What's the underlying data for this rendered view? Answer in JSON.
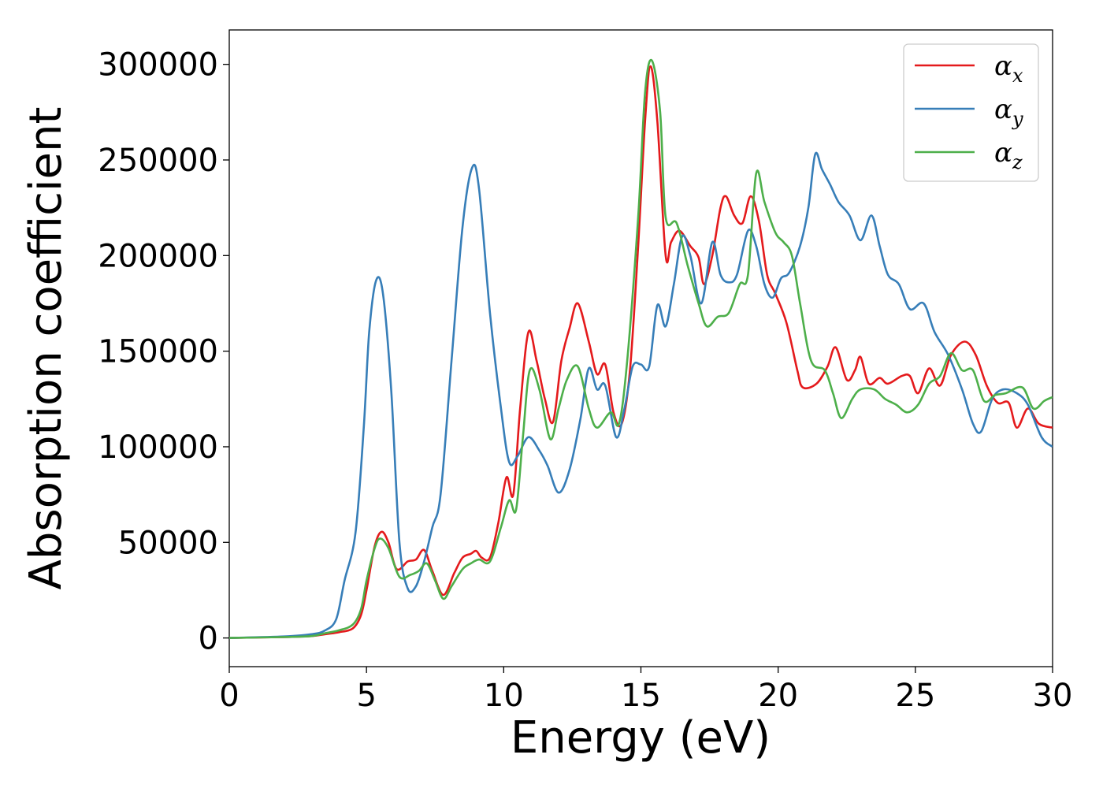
{
  "chart_data": {
    "type": "line",
    "title": "",
    "xlabel": "Energy (eV)",
    "ylabel": "Absorption coefficient",
    "xlim": [
      0,
      30
    ],
    "ylim": [
      -15000,
      318000
    ],
    "xticks": [
      0,
      5,
      10,
      15,
      20,
      25,
      30
    ],
    "yticks": [
      0,
      50000,
      100000,
      150000,
      200000,
      250000,
      300000
    ],
    "xtick_labels": [
      "0",
      "5",
      "10",
      "15",
      "20",
      "25",
      "30"
    ],
    "ytick_labels": [
      "0",
      "50000",
      "100000",
      "150000",
      "200000",
      "250000",
      "300000"
    ],
    "grid": false,
    "legend_position": "top-right",
    "series": [
      {
        "name": "αx",
        "symbol": "α",
        "subscript": "x",
        "color": "#e41a1c",
        "points": [
          [
            0,
            0
          ],
          [
            2,
            500
          ],
          [
            3,
            1000
          ],
          [
            3.5,
            2000
          ],
          [
            4,
            3000
          ],
          [
            4.5,
            5000
          ],
          [
            4.8,
            12000
          ],
          [
            5,
            25000
          ],
          [
            5.3,
            48000
          ],
          [
            5.55,
            55500
          ],
          [
            5.8,
            50000
          ],
          [
            6.1,
            36000
          ],
          [
            6.5,
            40000
          ],
          [
            6.8,
            41000
          ],
          [
            7.1,
            46000
          ],
          [
            7.4,
            35000
          ],
          [
            7.8,
            22500
          ],
          [
            8.2,
            34000
          ],
          [
            8.5,
            42000
          ],
          [
            8.8,
            44000
          ],
          [
            9,
            45500
          ],
          [
            9.2,
            42000
          ],
          [
            9.5,
            42000
          ],
          [
            9.8,
            60000
          ],
          [
            10.1,
            84000
          ],
          [
            10.35,
            75000
          ],
          [
            10.6,
            120000
          ],
          [
            10.9,
            160000
          ],
          [
            11.2,
            145000
          ],
          [
            11.5,
            125000
          ],
          [
            11.8,
            113000
          ],
          [
            12.1,
            145000
          ],
          [
            12.4,
            162000
          ],
          [
            12.7,
            175000
          ],
          [
            13.1,
            155000
          ],
          [
            13.4,
            138000
          ],
          [
            13.7,
            143000
          ],
          [
            14,
            118000
          ],
          [
            14.3,
            112000
          ],
          [
            14.6,
            140000
          ],
          [
            14.9,
            205000
          ],
          [
            15.15,
            270000
          ],
          [
            15.35,
            299000
          ],
          [
            15.6,
            270000
          ],
          [
            15.9,
            200000
          ],
          [
            16.1,
            207000
          ],
          [
            16.4,
            213000
          ],
          [
            16.8,
            205000
          ],
          [
            17.1,
            199000
          ],
          [
            17.3,
            185000
          ],
          [
            17.6,
            200000
          ],
          [
            17.9,
            225000
          ],
          [
            18.1,
            231000
          ],
          [
            18.4,
            221000
          ],
          [
            18.7,
            217000
          ],
          [
            19,
            231000
          ],
          [
            19.3,
            218000
          ],
          [
            19.6,
            190000
          ],
          [
            19.9,
            180000
          ],
          [
            20.3,
            165000
          ],
          [
            20.7,
            140000
          ],
          [
            20.9,
            131000
          ],
          [
            21.4,
            133000
          ],
          [
            21.8,
            142000
          ],
          [
            22.1,
            152000
          ],
          [
            22.5,
            135000
          ],
          [
            22.8,
            140000
          ],
          [
            23,
            147000
          ],
          [
            23.3,
            133000
          ],
          [
            23.7,
            136000
          ],
          [
            24,
            133000
          ],
          [
            24.5,
            137000
          ],
          [
            24.8,
            137000
          ],
          [
            25.1,
            128000
          ],
          [
            25.5,
            141000
          ],
          [
            25.9,
            132000
          ],
          [
            26.3,
            148000
          ],
          [
            26.8,
            155000
          ],
          [
            27.2,
            148000
          ],
          [
            27.6,
            132000
          ],
          [
            28,
            123000
          ],
          [
            28.4,
            123000
          ],
          [
            28.7,
            110000
          ],
          [
            29.1,
            120000
          ],
          [
            29.5,
            112000
          ],
          [
            30,
            110000
          ]
        ]
      },
      {
        "name": "αy",
        "symbol": "α",
        "subscript": "y",
        "color": "#377eb8",
        "points": [
          [
            0,
            0
          ],
          [
            2,
            800
          ],
          [
            3,
            2000
          ],
          [
            3.5,
            4000
          ],
          [
            3.9,
            10000
          ],
          [
            4.2,
            30000
          ],
          [
            4.6,
            55000
          ],
          [
            4.9,
            110000
          ],
          [
            5.1,
            160000
          ],
          [
            5.35,
            187000
          ],
          [
            5.6,
            180000
          ],
          [
            5.9,
            130000
          ],
          [
            6.2,
            50000
          ],
          [
            6.5,
            26000
          ],
          [
            6.8,
            27000
          ],
          [
            7.1,
            40000
          ],
          [
            7.4,
            58000
          ],
          [
            7.7,
            75000
          ],
          [
            8.1,
            145000
          ],
          [
            8.5,
            215000
          ],
          [
            8.85,
            246000
          ],
          [
            9.1,
            235000
          ],
          [
            9.5,
            170000
          ],
          [
            9.9,
            120000
          ],
          [
            10.2,
            92000
          ],
          [
            10.5,
            95000
          ],
          [
            10.9,
            105000
          ],
          [
            11.3,
            98000
          ],
          [
            11.6,
            90000
          ],
          [
            12,
            76000
          ],
          [
            12.4,
            88000
          ],
          [
            12.8,
            115000
          ],
          [
            13.1,
            141000
          ],
          [
            13.4,
            130000
          ],
          [
            13.7,
            132000
          ],
          [
            14.1,
            105000
          ],
          [
            14.4,
            120000
          ],
          [
            14.7,
            142000
          ],
          [
            15,
            143000
          ],
          [
            15.3,
            142000
          ],
          [
            15.6,
            174000
          ],
          [
            15.9,
            163000
          ],
          [
            16.2,
            185000
          ],
          [
            16.5,
            210000
          ],
          [
            16.8,
            200000
          ],
          [
            17.2,
            175000
          ],
          [
            17.6,
            207000
          ],
          [
            17.9,
            190000
          ],
          [
            18.2,
            186000
          ],
          [
            18.5,
            190000
          ],
          [
            18.9,
            213000
          ],
          [
            19.2,
            205000
          ],
          [
            19.5,
            185000
          ],
          [
            19.8,
            178000
          ],
          [
            20.1,
            188000
          ],
          [
            20.4,
            191000
          ],
          [
            20.8,
            205000
          ],
          [
            21.1,
            225000
          ],
          [
            21.35,
            253000
          ],
          [
            21.6,
            245000
          ],
          [
            21.9,
            237000
          ],
          [
            22.2,
            228000
          ],
          [
            22.6,
            221000
          ],
          [
            23,
            208000
          ],
          [
            23.4,
            221000
          ],
          [
            23.7,
            205000
          ],
          [
            24,
            190000
          ],
          [
            24.4,
            185000
          ],
          [
            24.8,
            172000
          ],
          [
            25.3,
            175000
          ],
          [
            25.7,
            160000
          ],
          [
            26.2,
            148000
          ],
          [
            26.7,
            130000
          ],
          [
            27.1,
            112000
          ],
          [
            27.4,
            108000
          ],
          [
            27.8,
            125000
          ],
          [
            28.2,
            130000
          ],
          [
            28.7,
            128000
          ],
          [
            29.1,
            122000
          ],
          [
            29.6,
            105000
          ],
          [
            30,
            100000
          ]
        ]
      },
      {
        "name": "αz",
        "symbol": "α",
        "subscript": "z",
        "color": "#4daf4a",
        "points": [
          [
            0,
            0
          ],
          [
            2,
            500
          ],
          [
            3,
            1000
          ],
          [
            3.5,
            2500
          ],
          [
            4,
            4000
          ],
          [
            4.5,
            7000
          ],
          [
            4.8,
            15000
          ],
          [
            5,
            30000
          ],
          [
            5.3,
            47000
          ],
          [
            5.5,
            52000
          ],
          [
            5.8,
            47000
          ],
          [
            6.2,
            32000
          ],
          [
            6.6,
            33000
          ],
          [
            6.9,
            35000
          ],
          [
            7.2,
            39000
          ],
          [
            7.5,
            30000
          ],
          [
            7.8,
            20500
          ],
          [
            8.1,
            27000
          ],
          [
            8.5,
            36000
          ],
          [
            8.8,
            39000
          ],
          [
            9.1,
            41000
          ],
          [
            9.5,
            40000
          ],
          [
            9.9,
            58000
          ],
          [
            10.2,
            72000
          ],
          [
            10.45,
            67000
          ],
          [
            10.7,
            105000
          ],
          [
            10.95,
            140000
          ],
          [
            11.3,
            130000
          ],
          [
            11.7,
            104000
          ],
          [
            12,
            120000
          ],
          [
            12.3,
            135000
          ],
          [
            12.7,
            142000
          ],
          [
            13.1,
            120000
          ],
          [
            13.4,
            110000
          ],
          [
            13.9,
            118000
          ],
          [
            14.2,
            112000
          ],
          [
            14.5,
            145000
          ],
          [
            14.9,
            220000
          ],
          [
            15.15,
            285000
          ],
          [
            15.4,
            302000
          ],
          [
            15.7,
            275000
          ],
          [
            15.9,
            220000
          ],
          [
            16.3,
            217000
          ],
          [
            16.7,
            195000
          ],
          [
            17.1,
            175000
          ],
          [
            17.4,
            163000
          ],
          [
            17.8,
            168000
          ],
          [
            18.2,
            170000
          ],
          [
            18.6,
            185000
          ],
          [
            18.9,
            190000
          ],
          [
            19.2,
            243000
          ],
          [
            19.5,
            228000
          ],
          [
            19.9,
            212000
          ],
          [
            20.2,
            207000
          ],
          [
            20.5,
            200000
          ],
          [
            20.8,
            175000
          ],
          [
            21.2,
            145000
          ],
          [
            21.7,
            140000
          ],
          [
            22,
            128000
          ],
          [
            22.3,
            115000
          ],
          [
            22.7,
            125000
          ],
          [
            23,
            130000
          ],
          [
            23.5,
            130000
          ],
          [
            23.9,
            125000
          ],
          [
            24.3,
            122000
          ],
          [
            24.7,
            118000
          ],
          [
            25.1,
            122000
          ],
          [
            25.5,
            133000
          ],
          [
            25.9,
            137000
          ],
          [
            26.3,
            149000
          ],
          [
            26.7,
            140000
          ],
          [
            27.1,
            140000
          ],
          [
            27.5,
            124000
          ],
          [
            27.9,
            127000
          ],
          [
            28.3,
            128000
          ],
          [
            28.9,
            131000
          ],
          [
            29.3,
            120000
          ],
          [
            29.7,
            124000
          ],
          [
            30,
            126000
          ]
        ]
      }
    ]
  }
}
